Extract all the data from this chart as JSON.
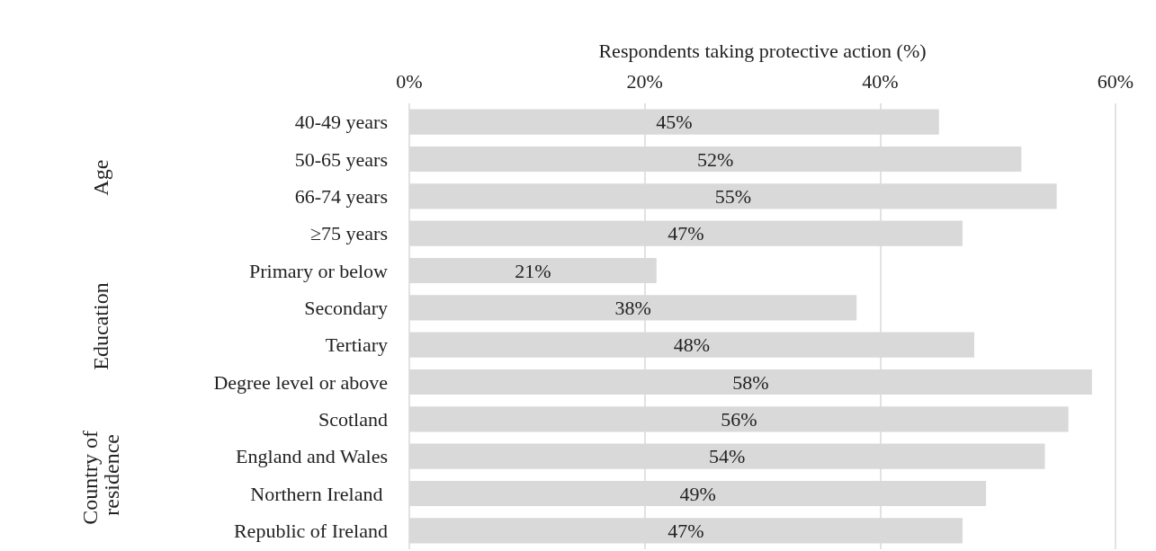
{
  "chart_data": {
    "type": "bar",
    "orientation": "horizontal",
    "xlabel": "Respondents taking protective action (%)",
    "categories": [
      "40-49 years",
      "50-65 years",
      "66-74 years",
      "≥75 years",
      "Primary or below",
      "Secondary",
      "Tertiary",
      "Degree level or above",
      "Scotland",
      "England and Wales",
      "Northern Ireland ",
      "Republic of Ireland"
    ],
    "values": [
      45,
      52,
      55,
      47,
      21,
      38,
      48,
      58,
      56,
      54,
      49,
      47
    ],
    "value_labels": [
      "45%",
      "52%",
      "55%",
      "47%",
      "21%",
      "38%",
      "48%",
      "58%",
      "56%",
      "54%",
      "49%",
      "47%"
    ],
    "color": "#d9d9d9",
    "xlim": [
      0,
      60
    ],
    "xticks": [
      {
        "value": 0,
        "label": "0%"
      },
      {
        "value": 20,
        "label": "20%"
      },
      {
        "value": 40,
        "label": "40%"
      },
      {
        "value": 60,
        "label": "60%"
      }
    ],
    "grid": "x",
    "annotations": [
      "Age",
      "Education",
      "Country of residence"
    ]
  }
}
